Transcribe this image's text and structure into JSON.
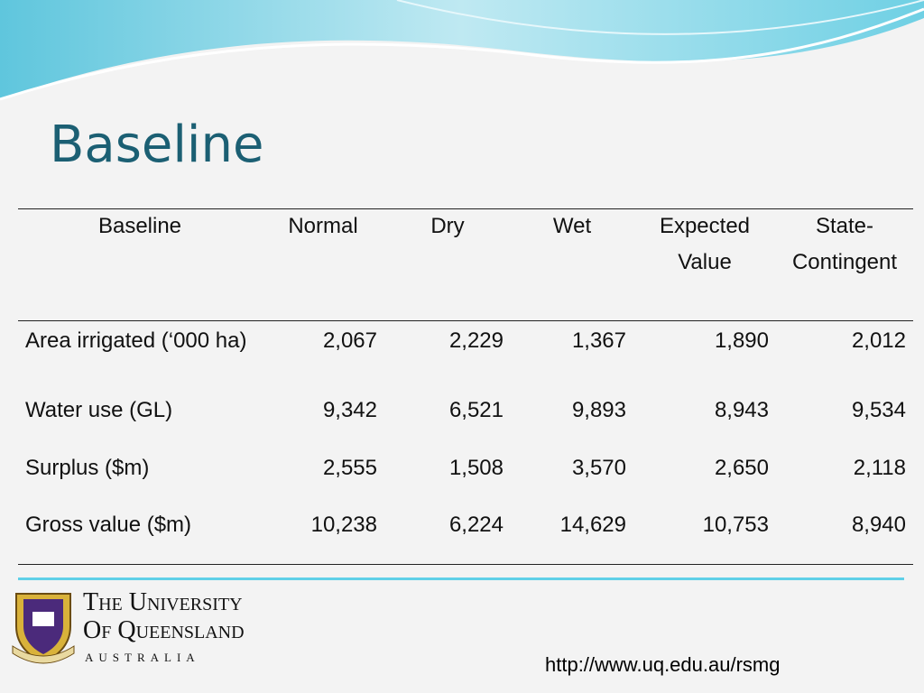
{
  "title": "Baseline",
  "table": {
    "header": [
      "Baseline",
      "Normal",
      "Dry",
      "Wet",
      "Expected Value",
      "State-Contingent"
    ],
    "rows": [
      [
        "Area irrigated (‘000 ha)",
        "2,067",
        "2,229",
        "1,367",
        "1,890",
        "2,012"
      ],
      [
        "Water use (GL)",
        "9,342",
        "6,521",
        "9,893",
        "8,943",
        "9,534"
      ],
      [
        "Surplus ($m)",
        "2,555",
        "1,508",
        "3,570",
        "2,650",
        "2,118"
      ],
      [
        "Gross value ($m)",
        "10,238",
        "6,224",
        "14,629",
        "10,753",
        "8,940"
      ]
    ]
  },
  "footer": {
    "logo_line1": "The University",
    "logo_line2": "Of Queensland",
    "logo_line3": "AUSTRALIA",
    "url": "http://www.uq.edu.au/rsmg"
  }
}
